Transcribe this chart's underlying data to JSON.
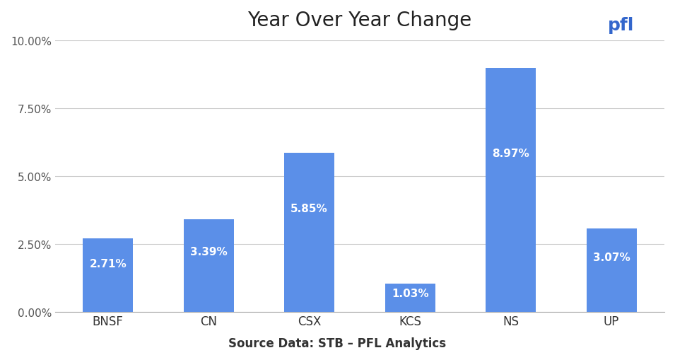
{
  "title": "Year Over Year Change",
  "categories": [
    "BNSF",
    "CN",
    "CSX",
    "KCS",
    "NS",
    "UP"
  ],
  "values": [
    0.0271,
    0.0339,
    0.0585,
    0.0103,
    0.0897,
    0.0307
  ],
  "labels": [
    "2.71%",
    "3.39%",
    "5.85%",
    "1.03%",
    "8.97%",
    "3.07%"
  ],
  "bar_color": "#5B8FE8",
  "background_color": "#ffffff",
  "ylabel": "",
  "xlabel": "",
  "ylim": [
    0,
    0.1
  ],
  "yticks": [
    0.0,
    0.025,
    0.05,
    0.075,
    0.1
  ],
  "ytick_labels": [
    "0.00%",
    "2.50%",
    "5.00%",
    "7.50%",
    "10.00%"
  ],
  "source_text": "Source Data: STB – PFL Analytics",
  "title_fontsize": 20,
  "tick_fontsize": 11,
  "label_fontsize": 11,
  "source_fontsize": 12,
  "grid_color": "#cccccc"
}
